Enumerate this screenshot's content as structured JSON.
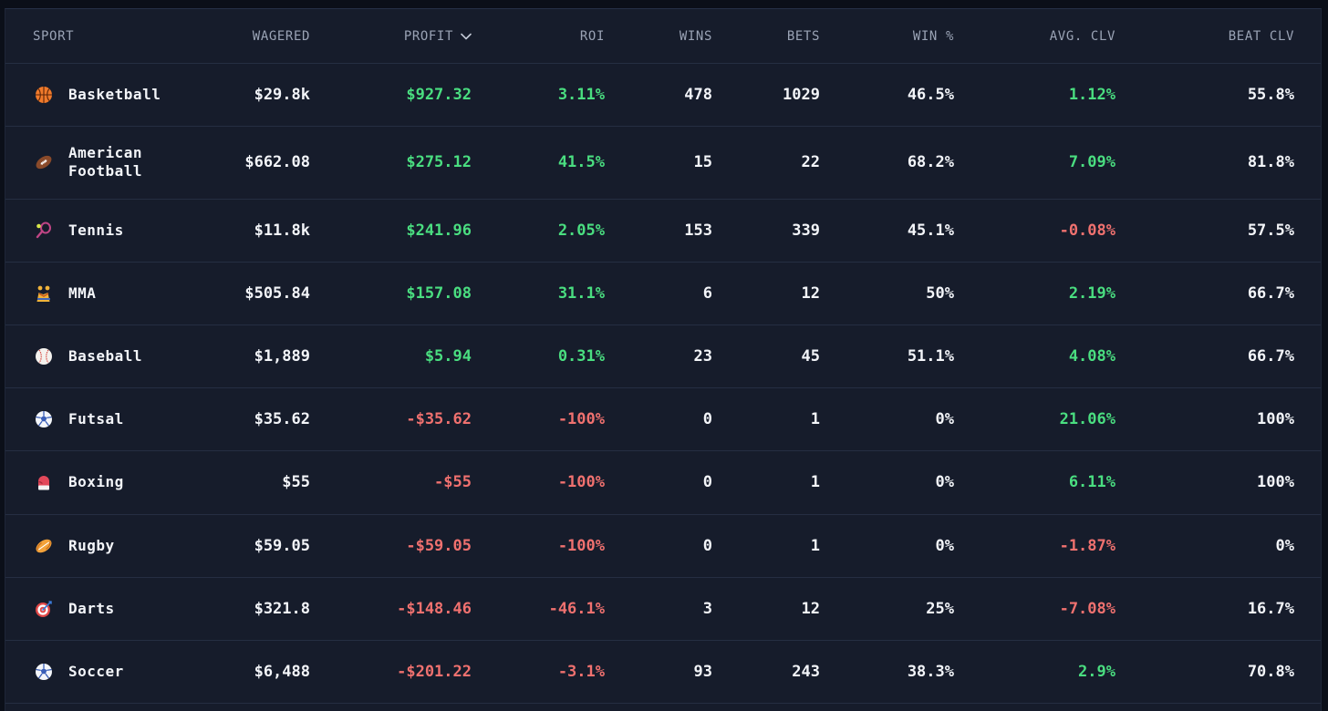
{
  "headers": {
    "sport": "SPORT",
    "wagered": "WAGERED",
    "profit": "PROFIT",
    "roi": "ROI",
    "wins": "WINS",
    "bets": "BETS",
    "win_pct": "WIN %",
    "avg_clv": "AVG. CLV",
    "beat_clv": "BEAT CLV"
  },
  "sort": {
    "column": "profit",
    "direction": "desc",
    "icon": "chevron-down-icon"
  },
  "colors": {
    "positive": "#4ade80",
    "negative": "#f0716f",
    "text": "#f3f5f9",
    "header": "#9aa3b5"
  },
  "rows": [
    {
      "icon": "basketball-icon",
      "sport": "Basketball",
      "wagered": "$29.8k",
      "profit": "$927.32",
      "roi": "3.11%",
      "wins": "478",
      "bets": "1029",
      "win_pct": "46.5%",
      "avg_clv": "1.12%",
      "beat_clv": "55.8%",
      "profit_sign": "pos",
      "roi_sign": "pos",
      "clv_sign": "pos"
    },
    {
      "icon": "american-football-icon",
      "sport": "American Football",
      "wagered": "$662.08",
      "profit": "$275.12",
      "roi": "41.5%",
      "wins": "15",
      "bets": "22",
      "win_pct": "68.2%",
      "avg_clv": "7.09%",
      "beat_clv": "81.8%",
      "profit_sign": "pos",
      "roi_sign": "pos",
      "clv_sign": "pos"
    },
    {
      "icon": "tennis-icon",
      "sport": "Tennis",
      "wagered": "$11.8k",
      "profit": "$241.96",
      "roi": "2.05%",
      "wins": "153",
      "bets": "339",
      "win_pct": "45.1%",
      "avg_clv": "-0.08%",
      "beat_clv": "57.5%",
      "profit_sign": "pos",
      "roi_sign": "pos",
      "clv_sign": "neg"
    },
    {
      "icon": "mma-icon",
      "sport": "MMA",
      "wagered": "$505.84",
      "profit": "$157.08",
      "roi": "31.1%",
      "wins": "6",
      "bets": "12",
      "win_pct": "50%",
      "avg_clv": "2.19%",
      "beat_clv": "66.7%",
      "profit_sign": "pos",
      "roi_sign": "pos",
      "clv_sign": "pos"
    },
    {
      "icon": "baseball-icon",
      "sport": "Baseball",
      "wagered": "$1,889",
      "profit": "$5.94",
      "roi": "0.31%",
      "wins": "23",
      "bets": "45",
      "win_pct": "51.1%",
      "avg_clv": "4.08%",
      "beat_clv": "66.7%",
      "profit_sign": "pos",
      "roi_sign": "pos",
      "clv_sign": "pos"
    },
    {
      "icon": "futsal-ball-icon",
      "sport": "Futsal",
      "wagered": "$35.62",
      "profit": "-$35.62",
      "roi": "-100%",
      "wins": "0",
      "bets": "1",
      "win_pct": "0%",
      "avg_clv": "21.06%",
      "beat_clv": "100%",
      "profit_sign": "neg",
      "roi_sign": "neg",
      "clv_sign": "pos"
    },
    {
      "icon": "boxing-glove-icon",
      "sport": "Boxing",
      "wagered": "$55",
      "profit": "-$55",
      "roi": "-100%",
      "wins": "0",
      "bets": "1",
      "win_pct": "0%",
      "avg_clv": "6.11%",
      "beat_clv": "100%",
      "profit_sign": "neg",
      "roi_sign": "neg",
      "clv_sign": "pos"
    },
    {
      "icon": "rugby-ball-icon",
      "sport": "Rugby",
      "wagered": "$59.05",
      "profit": "-$59.05",
      "roi": "-100%",
      "wins": "0",
      "bets": "1",
      "win_pct": "0%",
      "avg_clv": "-1.87%",
      "beat_clv": "0%",
      "profit_sign": "neg",
      "roi_sign": "neg",
      "clv_sign": "neg"
    },
    {
      "icon": "dartboard-icon",
      "sport": "Darts",
      "wagered": "$321.8",
      "profit": "-$148.46",
      "roi": "-46.1%",
      "wins": "3",
      "bets": "12",
      "win_pct": "25%",
      "avg_clv": "-7.08%",
      "beat_clv": "16.7%",
      "profit_sign": "neg",
      "roi_sign": "neg",
      "clv_sign": "neg"
    },
    {
      "icon": "soccer-ball-icon",
      "sport": "Soccer",
      "wagered": "$6,488",
      "profit": "-$201.22",
      "roi": "-3.1%",
      "wins": "93",
      "bets": "243",
      "win_pct": "38.3%",
      "avg_clv": "2.9%",
      "beat_clv": "70.8%",
      "profit_sign": "neg",
      "roi_sign": "neg",
      "clv_sign": "pos"
    }
  ]
}
